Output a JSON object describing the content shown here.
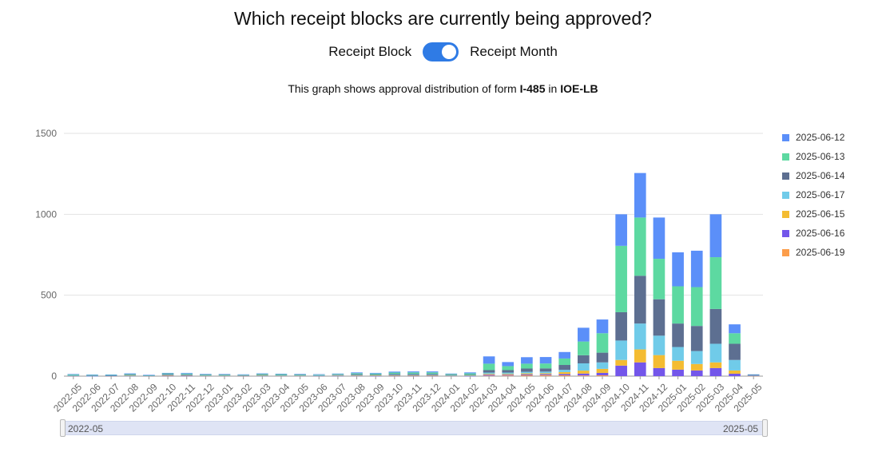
{
  "header": {
    "title": "Which receipt blocks are currently being approved?",
    "toggle_left_label": "Receipt Block",
    "toggle_right_label": "Receipt Month",
    "subtitle_prefix": "This graph shows approval distribution of form ",
    "form": "I-485",
    "subtitle_middle": " in ",
    "office": "IOE-LB"
  },
  "slider": {
    "start_label": "2022-05",
    "end_label": "2025-05"
  },
  "chart_data": {
    "type": "bar",
    "stacked": true,
    "ylim": [
      0,
      1500
    ],
    "yticks": [
      0,
      500,
      1000,
      1500
    ],
    "grid": true,
    "legend_position": "right",
    "categories": [
      "2022-05",
      "2022-06",
      "2022-07",
      "2022-08",
      "2022-09",
      "2022-10",
      "2022-11",
      "2022-12",
      "2023-01",
      "2023-02",
      "2023-03",
      "2023-04",
      "2023-05",
      "2023-06",
      "2023-07",
      "2023-08",
      "2023-09",
      "2023-10",
      "2023-11",
      "2023-12",
      "2024-01",
      "2024-02",
      "2024-03",
      "2024-04",
      "2024-05",
      "2024-06",
      "2024-07",
      "2024-08",
      "2024-09",
      "2024-10",
      "2024-11",
      "2024-12",
      "2025-01",
      "2025-02",
      "2025-03",
      "2025-04",
      "2025-05"
    ],
    "series": [
      {
        "name": "2025-06-19",
        "color": "#fc9d4a",
        "values": [
          0,
          0,
          0,
          0,
          0,
          0,
          0,
          0,
          0,
          0,
          0,
          0,
          0,
          0,
          0,
          0,
          0,
          0,
          0,
          0,
          0,
          0,
          3,
          4,
          5,
          6,
          5,
          4,
          5,
          0,
          0,
          0,
          0,
          0,
          0,
          0,
          2
        ]
      },
      {
        "name": "2025-06-16",
        "color": "#7356ea",
        "values": [
          1,
          1,
          1,
          2,
          1,
          2,
          2,
          1,
          1,
          1,
          2,
          1,
          1,
          1,
          2,
          2,
          1,
          2,
          2,
          2,
          1,
          1,
          6,
          5,
          6,
          6,
          8,
          12,
          15,
          65,
          85,
          50,
          40,
          35,
          50,
          15,
          1
        ]
      },
      {
        "name": "2025-06-15",
        "color": "#f4bc32",
        "values": [
          1,
          0,
          1,
          1,
          1,
          3,
          3,
          1,
          1,
          1,
          1,
          1,
          1,
          1,
          2,
          2,
          2,
          3,
          3,
          3,
          1,
          2,
          5,
          5,
          6,
          6,
          12,
          18,
          25,
          35,
          80,
          80,
          55,
          40,
          35,
          20,
          2
        ]
      },
      {
        "name": "2025-06-17",
        "color": "#70cbe9",
        "values": [
          1,
          1,
          1,
          2,
          1,
          3,
          2,
          2,
          2,
          2,
          2,
          2,
          2,
          1,
          2,
          3,
          3,
          3,
          3,
          3,
          2,
          2,
          8,
          8,
          10,
          10,
          14,
          45,
          40,
          120,
          160,
          120,
          85,
          80,
          115,
          65,
          1
        ]
      },
      {
        "name": "2025-06-14",
        "color": "#5d6f91",
        "values": [
          3,
          2,
          2,
          4,
          1,
          5,
          4,
          3,
          3,
          2,
          4,
          3,
          3,
          3,
          3,
          5,
          4,
          6,
          6,
          6,
          4,
          4,
          15,
          15,
          20,
          20,
          30,
          50,
          60,
          175,
          295,
          225,
          145,
          155,
          215,
          100,
          2
        ]
      },
      {
        "name": "2025-06-13",
        "color": "#5dd9a1",
        "values": [
          4,
          3,
          3,
          4,
          2,
          4,
          5,
          4,
          3,
          3,
          5,
          5,
          4,
          3,
          4,
          6,
          6,
          8,
          9,
          9,
          5,
          8,
          40,
          25,
          30,
          30,
          40,
          85,
          120,
          410,
          360,
          250,
          230,
          240,
          320,
          65,
          2
        ]
      },
      {
        "name": "2025-06-12",
        "color": "#5b8ff9",
        "values": [
          3,
          3,
          2,
          4,
          2,
          3,
          4,
          3,
          3,
          2,
          3,
          3,
          3,
          3,
          3,
          5,
          4,
          6,
          6,
          6,
          3,
          6,
          45,
          25,
          40,
          40,
          40,
          85,
          85,
          195,
          275,
          255,
          210,
          225,
          265,
          55,
          1
        ]
      }
    ]
  }
}
